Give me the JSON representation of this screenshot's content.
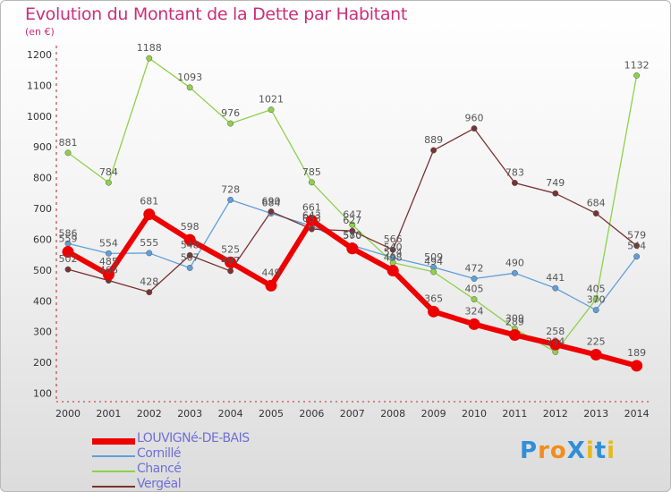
{
  "title": "Evolution du Montant de la Dette par Habitant",
  "unit_label": "(en €)",
  "logo": {
    "text": "ProXiti",
    "colors": [
      "#2f8fd8",
      "#f28c1c",
      "#f28c1c",
      "#2f8fd8",
      "#e8b81c",
      "#2f8fd8",
      "#e8b81c"
    ]
  },
  "chart_data": {
    "type": "line",
    "x": [
      2000,
      2001,
      2002,
      2003,
      2004,
      2005,
      2006,
      2007,
      2008,
      2009,
      2010,
      2011,
      2012,
      2013,
      2014
    ],
    "ylim": [
      100,
      1200
    ],
    "yticks": [
      100,
      200,
      300,
      400,
      500,
      600,
      700,
      800,
      900,
      1000,
      1100,
      1200
    ],
    "grid": false,
    "legend_position": "bottom-left",
    "series": [
      {
        "name": "LOUVIGNé-DE-BAIS",
        "color": "#ee0000",
        "width": "thick",
        "values": [
          559,
          485,
          681,
          598,
          525,
          449,
          661,
          570,
          498,
          365,
          324,
          289,
          258,
          225,
          189
        ]
      },
      {
        "name": "Cornillé",
        "color": "#5f9fd9",
        "width": "thin",
        "values": [
          586,
          554,
          555,
          507,
          728,
          684,
          643,
          580,
          540,
          509,
          472,
          490,
          441,
          370,
          544
        ]
      },
      {
        "name": "Chancé",
        "color": "#8ed14a",
        "width": "thin",
        "values": [
          881,
          784,
          1188,
          1093,
          976,
          1021,
          785,
          647,
          524,
          494,
          405,
          309,
          234,
          405,
          1132
        ]
      },
      {
        "name": "Vergéal",
        "color": "#7a3232",
        "width": "thin",
        "values": [
          502,
          466,
          428,
          548,
          497,
          690,
          633,
          627,
          566,
          889,
          960,
          783,
          749,
          684,
          579
        ]
      }
    ]
  }
}
